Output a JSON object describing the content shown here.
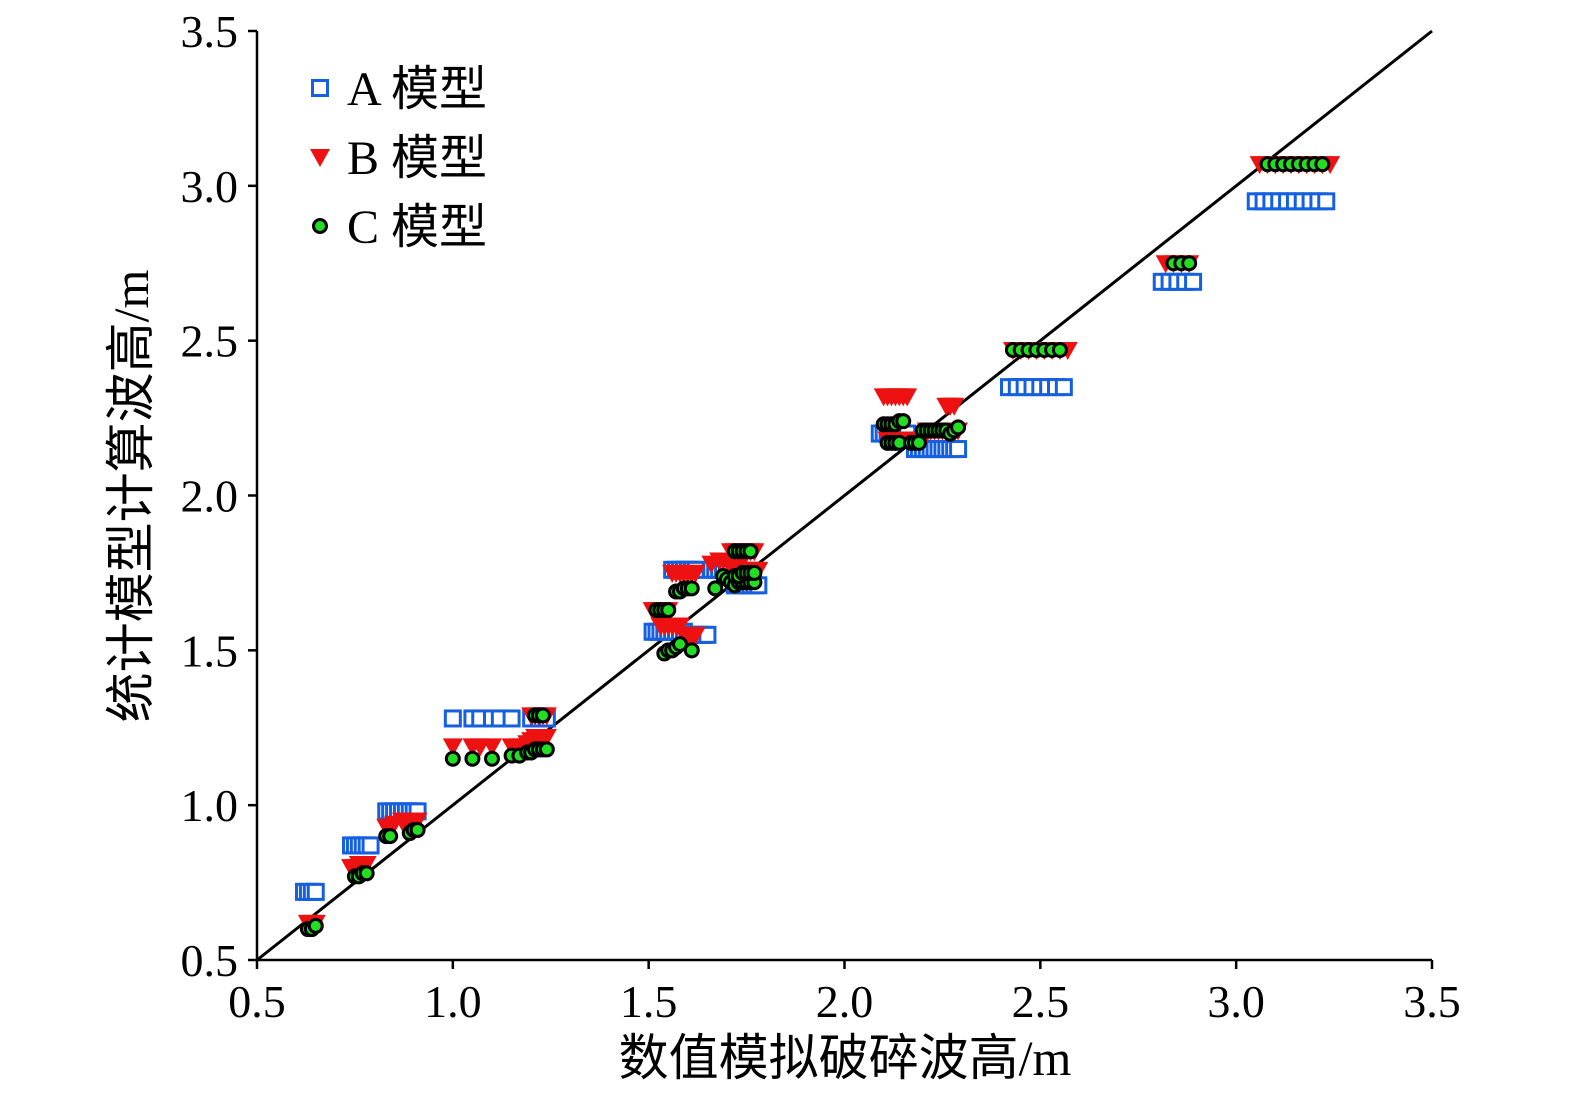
{
  "chart_data": {
    "type": "scatter",
    "xlabel": "数值模拟破碎波高/m",
    "ylabel": "统计模型计算波高/m",
    "xlim": [
      0.5,
      3.5
    ],
    "ylim": [
      0.5,
      3.5
    ],
    "xticks": [
      "0.5",
      "1.0",
      "1.5",
      "2.0",
      "2.5",
      "3.0",
      "3.5"
    ],
    "yticks": [
      "0.5",
      "1.0",
      "1.5",
      "2.0",
      "2.5",
      "3.0",
      "3.5"
    ],
    "reference_line": {
      "x": [
        0.5,
        3.5
      ],
      "y": [
        0.5,
        3.5
      ],
      "color": "#000000"
    },
    "grid": false,
    "legend_position": "top-left",
    "series": [
      {
        "name": "A 模型",
        "marker": "open-square",
        "color": "#1460e0",
        "x": [
          0.62,
          0.63,
          0.64,
          0.65,
          0.74,
          0.75,
          0.76,
          0.77,
          0.78,
          0.79,
          0.83,
          0.84,
          0.85,
          0.86,
          0.87,
          0.88,
          0.89,
          0.9,
          0.91,
          1.0,
          1.05,
          1.07,
          1.1,
          1.12,
          1.15,
          1.2,
          1.22,
          1.24,
          1.51,
          1.52,
          1.53,
          1.54,
          1.55,
          1.56,
          1.57,
          1.58,
          1.59,
          1.6,
          1.61,
          1.62,
          1.63,
          1.64,
          1.65,
          1.56,
          1.57,
          1.58,
          1.59,
          1.6,
          1.61,
          1.62,
          1.66,
          1.67,
          1.68,
          1.69,
          1.7,
          1.72,
          1.73,
          1.74,
          1.75,
          1.76,
          1.77,
          1.78,
          2.09,
          2.1,
          2.11,
          2.12,
          2.13,
          2.14,
          2.15,
          2.16,
          2.18,
          2.19,
          2.2,
          2.21,
          2.22,
          2.23,
          2.24,
          2.25,
          2.26,
          2.27,
          2.28,
          2.29,
          2.42,
          2.44,
          2.46,
          2.48,
          2.5,
          2.52,
          2.54,
          2.56,
          2.81,
          2.83,
          2.85,
          2.87,
          2.89,
          3.05,
          3.07,
          3.09,
          3.11,
          3.13,
          3.15,
          3.17,
          3.19,
          3.21,
          3.23
        ],
        "y": [
          0.72,
          0.72,
          0.72,
          0.72,
          0.87,
          0.87,
          0.87,
          0.87,
          0.87,
          0.87,
          0.98,
          0.98,
          0.98,
          0.98,
          0.98,
          0.98,
          0.98,
          0.98,
          0.98,
          1.28,
          1.28,
          1.28,
          1.28,
          1.28,
          1.28,
          1.28,
          1.28,
          1.28,
          1.56,
          1.56,
          1.56,
          1.56,
          1.56,
          1.56,
          1.56,
          1.56,
          1.56,
          1.55,
          1.55,
          1.55,
          1.55,
          1.55,
          1.55,
          1.76,
          1.76,
          1.76,
          1.76,
          1.76,
          1.76,
          1.76,
          1.76,
          1.76,
          1.76,
          1.76,
          1.76,
          1.71,
          1.71,
          1.71,
          1.71,
          1.71,
          1.71,
          1.71,
          2.2,
          2.2,
          2.2,
          2.2,
          2.2,
          2.2,
          2.2,
          2.2,
          2.15,
          2.15,
          2.15,
          2.15,
          2.15,
          2.15,
          2.15,
          2.15,
          2.15,
          2.15,
          2.15,
          2.15,
          2.35,
          2.35,
          2.35,
          2.35,
          2.35,
          2.35,
          2.35,
          2.35,
          2.69,
          2.69,
          2.69,
          2.69,
          2.69,
          2.95,
          2.95,
          2.95,
          2.95,
          2.95,
          2.95,
          2.95,
          2.95,
          2.95,
          2.95
        ]
      },
      {
        "name": "B 模型",
        "marker": "filled-down-triangle",
        "color": "#ee1111",
        "x": [
          0.63,
          0.64,
          0.65,
          0.74,
          0.75,
          0.76,
          0.77,
          0.78,
          0.83,
          0.84,
          0.85,
          0.87,
          0.88,
          0.89,
          0.9,
          0.91,
          1.0,
          1.05,
          1.07,
          1.1,
          1.15,
          1.17,
          1.19,
          1.2,
          1.21,
          1.22,
          1.23,
          1.24,
          1.2,
          1.21,
          1.22,
          1.23,
          1.24,
          1.51,
          1.52,
          1.53,
          1.54,
          1.55,
          1.53,
          1.54,
          1.55,
          1.56,
          1.57,
          1.58,
          1.59,
          1.6,
          1.61,
          1.62,
          1.56,
          1.57,
          1.58,
          1.59,
          1.6,
          1.61,
          1.62,
          1.66,
          1.68,
          1.69,
          1.7,
          1.71,
          1.72,
          1.73,
          1.74,
          1.75,
          1.76,
          1.77,
          1.78,
          1.71,
          1.72,
          1.73,
          1.74,
          1.75,
          1.76,
          1.77,
          2.1,
          2.11,
          2.12,
          2.13,
          2.14,
          2.15,
          2.16,
          2.26,
          2.27,
          2.28,
          2.21,
          2.22,
          2.23,
          2.24,
          2.25,
          2.26,
          2.27,
          2.28,
          2.29,
          2.11,
          2.12,
          2.13,
          2.14,
          2.15,
          2.16,
          2.17,
          2.18,
          2.19,
          2.2,
          2.43,
          2.45,
          2.47,
          2.49,
          2.51,
          2.53,
          2.55,
          2.57,
          2.82,
          2.84,
          2.86,
          2.88,
          3.06,
          3.08,
          3.1,
          3.12,
          3.14,
          3.16,
          3.18,
          3.2,
          3.22,
          3.24
        ],
        "y": [
          0.62,
          0.62,
          0.62,
          0.8,
          0.8,
          0.81,
          0.81,
          0.81,
          0.93,
          0.93,
          0.94,
          0.95,
          0.95,
          0.95,
          0.95,
          0.95,
          1.19,
          1.19,
          1.19,
          1.19,
          1.19,
          1.19,
          1.2,
          1.21,
          1.22,
          1.22,
          1.22,
          1.22,
          1.29,
          1.29,
          1.29,
          1.29,
          1.29,
          1.63,
          1.63,
          1.63,
          1.63,
          1.63,
          1.58,
          1.58,
          1.58,
          1.58,
          1.58,
          1.58,
          1.55,
          1.55,
          1.55,
          1.55,
          1.75,
          1.75,
          1.75,
          1.75,
          1.75,
          1.75,
          1.75,
          1.78,
          1.79,
          1.79,
          1.79,
          1.77,
          1.77,
          1.77,
          1.76,
          1.76,
          1.76,
          1.76,
          1.76,
          1.82,
          1.82,
          1.82,
          1.82,
          1.82,
          1.82,
          1.82,
          2.32,
          2.32,
          2.32,
          2.32,
          2.32,
          2.32,
          2.32,
          2.29,
          2.29,
          2.29,
          2.21,
          2.21,
          2.21,
          2.21,
          2.21,
          2.21,
          2.21,
          2.21,
          2.21,
          2.18,
          2.18,
          2.18,
          2.18,
          2.18,
          2.18,
          2.18,
          2.18,
          2.18,
          2.18,
          2.47,
          2.47,
          2.47,
          2.47,
          2.47,
          2.47,
          2.47,
          2.47,
          2.75,
          2.75,
          2.75,
          2.75,
          3.07,
          3.07,
          3.07,
          3.07,
          3.07,
          3.07,
          3.07,
          3.07,
          3.07,
          3.07
        ]
      },
      {
        "name": "C 模型",
        "marker": "filled-circle-black-edge",
        "color": "#22dd22",
        "x": [
          0.63,
          0.64,
          0.65,
          0.75,
          0.76,
          0.77,
          0.78,
          0.83,
          0.84,
          0.89,
          0.9,
          0.91,
          1.0,
          1.05,
          1.1,
          1.15,
          1.17,
          1.19,
          1.2,
          1.21,
          1.22,
          1.23,
          1.24,
          1.21,
          1.22,
          1.23,
          1.52,
          1.53,
          1.54,
          1.55,
          1.54,
          1.55,
          1.56,
          1.57,
          1.58,
          1.61,
          1.57,
          1.58,
          1.59,
          1.6,
          1.61,
          1.67,
          1.69,
          1.7,
          1.71,
          1.72,
          1.73,
          1.74,
          1.75,
          1.76,
          1.77,
          1.72,
          1.73,
          1.74,
          1.75,
          1.76,
          1.77,
          1.72,
          1.73,
          1.74,
          1.75,
          1.76,
          2.1,
          2.11,
          2.12,
          2.13,
          2.14,
          2.15,
          2.11,
          2.12,
          2.13,
          2.14,
          2.17,
          2.18,
          2.19,
          2.2,
          2.21,
          2.22,
          2.23,
          2.24,
          2.25,
          2.26,
          2.27,
          2.28,
          2.29,
          2.43,
          2.45,
          2.47,
          2.49,
          2.51,
          2.53,
          2.55,
          2.84,
          2.86,
          2.88,
          3.08,
          3.1,
          3.12,
          3.14,
          3.16,
          3.18,
          3.2,
          3.22
        ],
        "y": [
          0.6,
          0.6,
          0.61,
          0.77,
          0.77,
          0.78,
          0.78,
          0.9,
          0.9,
          0.91,
          0.92,
          0.92,
          1.15,
          1.15,
          1.15,
          1.16,
          1.16,
          1.17,
          1.17,
          1.18,
          1.18,
          1.18,
          1.18,
          1.29,
          1.29,
          1.29,
          1.63,
          1.63,
          1.63,
          1.63,
          1.49,
          1.5,
          1.5,
          1.51,
          1.52,
          1.5,
          1.69,
          1.69,
          1.7,
          1.7,
          1.7,
          1.7,
          1.74,
          1.73,
          1.72,
          1.71,
          1.72,
          1.72,
          1.72,
          1.72,
          1.72,
          1.74,
          1.74,
          1.75,
          1.75,
          1.75,
          1.75,
          1.82,
          1.82,
          1.82,
          1.82,
          1.82,
          2.23,
          2.23,
          2.23,
          2.23,
          2.24,
          2.24,
          2.17,
          2.17,
          2.17,
          2.17,
          2.17,
          2.17,
          2.17,
          2.21,
          2.21,
          2.21,
          2.21,
          2.21,
          2.21,
          2.21,
          2.2,
          2.21,
          2.22,
          2.47,
          2.47,
          2.47,
          2.47,
          2.47,
          2.47,
          2.47,
          2.75,
          2.75,
          2.75,
          3.07,
          3.07,
          3.07,
          3.07,
          3.07,
          3.07,
          3.07,
          3.07
        ]
      }
    ]
  }
}
